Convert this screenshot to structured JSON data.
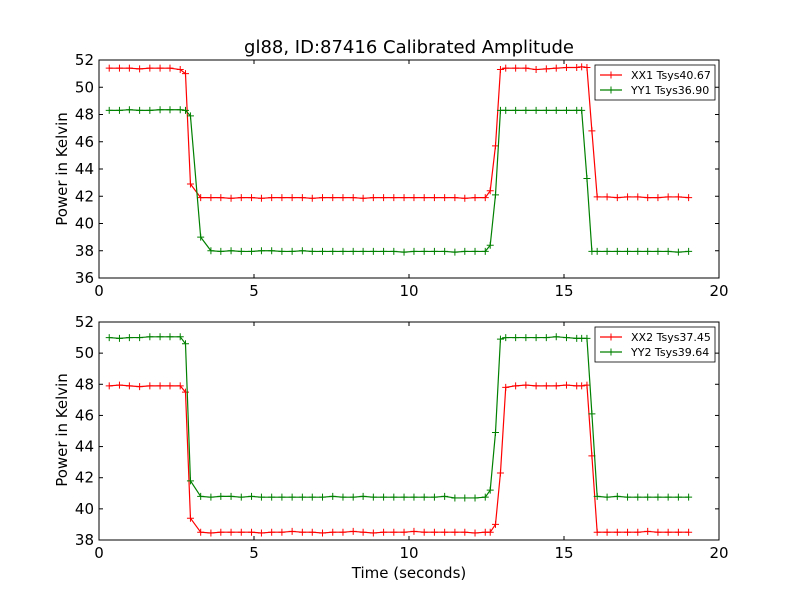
{
  "chart_data": [
    {
      "type": "line",
      "title": "gl88, ID:87416 Calibrated Amplitude",
      "xlabel": "",
      "ylabel": "Power in Kelvin",
      "xlim": [
        0,
        20
      ],
      "ylim": [
        36,
        52
      ],
      "xticks": [
        0,
        5,
        10,
        15,
        20
      ],
      "yticks": [
        36,
        38,
        40,
        42,
        44,
        46,
        48,
        50,
        52
      ],
      "grid": false,
      "legend_position": "top-right",
      "x": [
        0.33,
        0.66,
        0.98,
        1.31,
        1.64,
        1.97,
        2.29,
        2.62,
        2.79,
        2.95,
        3.28,
        3.61,
        3.93,
        4.26,
        4.59,
        4.92,
        5.24,
        5.57,
        5.9,
        6.23,
        6.56,
        6.88,
        7.21,
        7.54,
        7.87,
        8.2,
        8.52,
        8.85,
        9.18,
        9.51,
        9.84,
        10.16,
        10.49,
        10.82,
        11.15,
        11.48,
        11.8,
        12.13,
        12.46,
        12.62,
        12.79,
        12.95,
        13.12,
        13.44,
        13.77,
        14.1,
        14.43,
        14.75,
        15.08,
        15.41,
        15.57,
        15.74,
        15.9,
        16.07,
        16.39,
        16.72,
        17.05,
        17.38,
        17.7,
        18.03,
        18.36,
        18.69,
        19.02
      ],
      "series": [
        {
          "name": "XX1 Tsys40.67",
          "color": "#ff0000",
          "values": [
            51.4,
            51.4,
            51.4,
            51.35,
            51.4,
            51.4,
            51.4,
            51.3,
            51.0,
            42.9,
            41.9,
            41.9,
            41.9,
            41.85,
            41.9,
            41.9,
            41.85,
            41.9,
            41.9,
            41.9,
            41.9,
            41.85,
            41.9,
            41.9,
            41.9,
            41.9,
            41.85,
            41.9,
            41.9,
            41.9,
            41.9,
            41.9,
            41.9,
            41.9,
            41.9,
            41.9,
            41.85,
            41.9,
            41.9,
            42.4,
            45.7,
            51.3,
            51.4,
            51.4,
            51.4,
            51.3,
            51.35,
            51.4,
            51.45,
            51.45,
            51.5,
            51.45,
            46.8,
            41.95,
            41.95,
            41.9,
            41.95,
            41.95,
            41.9,
            41.9,
            41.95,
            41.95,
            41.9
          ]
        },
        {
          "name": "YY1 Tsys36.90",
          "color": "#008000",
          "values": [
            48.3,
            48.3,
            48.35,
            48.3,
            48.3,
            48.35,
            48.35,
            48.35,
            48.3,
            47.9,
            39.0,
            38.0,
            37.95,
            38.0,
            37.95,
            37.95,
            38.0,
            38.0,
            37.95,
            37.95,
            38.0,
            37.95,
            37.95,
            37.95,
            37.95,
            37.95,
            37.95,
            37.95,
            37.95,
            37.95,
            37.9,
            37.95,
            37.95,
            37.95,
            37.95,
            37.9,
            37.95,
            37.95,
            37.95,
            38.4,
            42.1,
            48.3,
            48.3,
            48.3,
            48.3,
            48.3,
            48.3,
            48.3,
            48.3,
            48.3,
            48.3,
            43.3,
            37.95,
            37.95,
            37.95,
            37.95,
            37.95,
            37.95,
            37.95,
            37.95,
            37.95,
            37.9,
            37.95
          ]
        }
      ]
    },
    {
      "type": "line",
      "title": "",
      "xlabel": "Time (seconds)",
      "ylabel": "Power in Kelvin",
      "xlim": [
        0,
        20
      ],
      "ylim": [
        38,
        52
      ],
      "xticks": [
        0,
        5,
        10,
        15,
        20
      ],
      "yticks": [
        38,
        40,
        42,
        44,
        46,
        48,
        50,
        52
      ],
      "grid": false,
      "legend_position": "top-right",
      "x": [
        0.33,
        0.66,
        0.98,
        1.31,
        1.64,
        1.97,
        2.29,
        2.62,
        2.79,
        2.95,
        3.28,
        3.61,
        3.93,
        4.26,
        4.59,
        4.92,
        5.24,
        5.57,
        5.9,
        6.23,
        6.56,
        6.88,
        7.21,
        7.54,
        7.87,
        8.2,
        8.52,
        8.85,
        9.18,
        9.51,
        9.84,
        10.16,
        10.49,
        10.82,
        11.15,
        11.48,
        11.8,
        12.13,
        12.46,
        12.62,
        12.79,
        12.95,
        13.12,
        13.44,
        13.77,
        14.1,
        14.43,
        14.75,
        15.08,
        15.41,
        15.57,
        15.74,
        15.9,
        16.07,
        16.39,
        16.72,
        17.05,
        17.38,
        17.7,
        18.03,
        18.36,
        18.69,
        19.02
      ],
      "series": [
        {
          "name": "XX2 Tsys37.45",
          "color": "#ff0000",
          "values": [
            47.9,
            47.95,
            47.9,
            47.85,
            47.9,
            47.9,
            47.9,
            47.9,
            47.5,
            39.4,
            38.5,
            38.45,
            38.5,
            38.5,
            38.5,
            38.5,
            38.45,
            38.5,
            38.5,
            38.55,
            38.5,
            38.5,
            38.45,
            38.5,
            38.5,
            38.55,
            38.5,
            38.45,
            38.5,
            38.5,
            38.5,
            38.55,
            38.5,
            38.5,
            38.5,
            38.5,
            38.5,
            38.45,
            38.5,
            38.5,
            39.0,
            42.3,
            47.8,
            47.9,
            47.95,
            47.9,
            47.9,
            47.9,
            47.95,
            47.9,
            47.9,
            47.95,
            43.4,
            38.5,
            38.5,
            38.5,
            38.5,
            38.5,
            38.55,
            38.5,
            38.5,
            38.5,
            38.5
          ]
        },
        {
          "name": "YY2 Tsys39.64",
          "color": "#008000",
          "values": [
            51.0,
            50.95,
            51.0,
            51.0,
            51.05,
            51.05,
            51.05,
            51.05,
            50.6,
            41.8,
            40.8,
            40.75,
            40.8,
            40.8,
            40.75,
            40.8,
            40.75,
            40.75,
            40.75,
            40.75,
            40.75,
            40.75,
            40.75,
            40.8,
            40.75,
            40.75,
            40.8,
            40.75,
            40.75,
            40.75,
            40.75,
            40.75,
            40.75,
            40.75,
            40.8,
            40.7,
            40.7,
            40.7,
            40.75,
            41.2,
            44.9,
            50.9,
            51.0,
            51.0,
            51.0,
            51.0,
            51.0,
            51.05,
            51.0,
            50.95,
            50.95,
            50.95,
            46.1,
            40.8,
            40.75,
            40.8,
            40.75,
            40.75,
            40.75,
            40.75,
            40.75,
            40.75,
            40.75
          ]
        }
      ]
    }
  ]
}
